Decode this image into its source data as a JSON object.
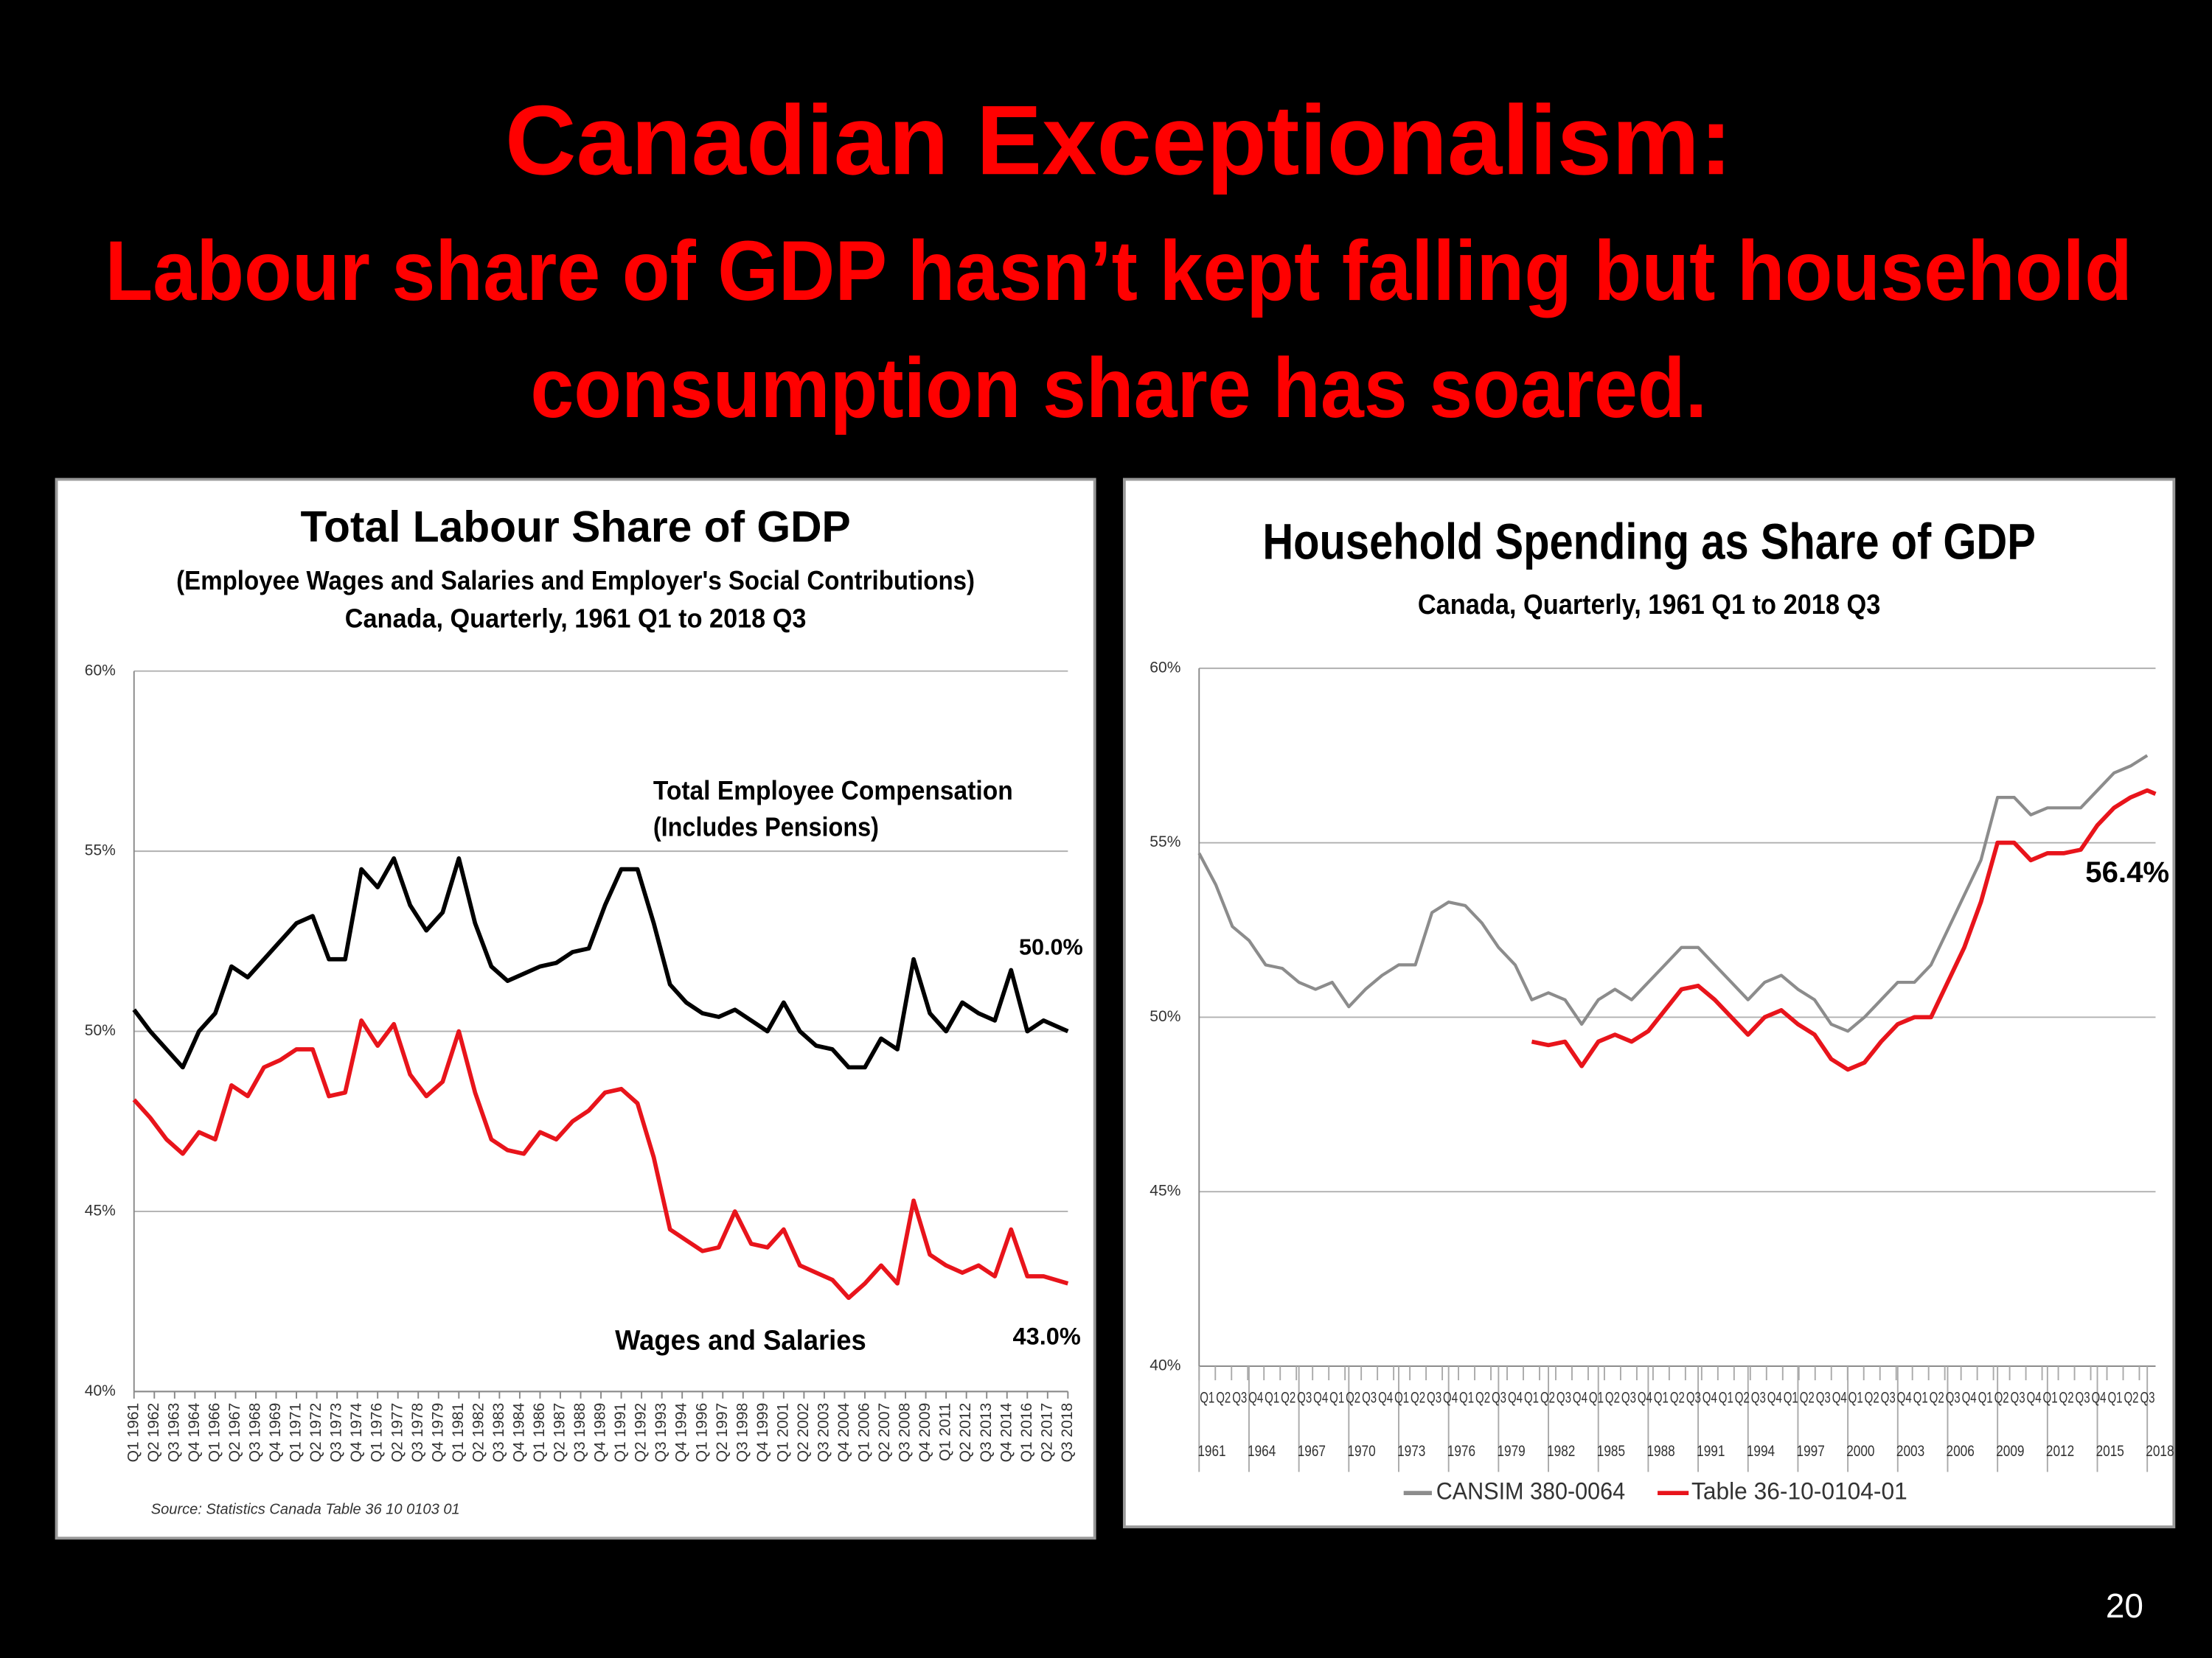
{
  "slide": {
    "title": "Canadian Exceptionalism:",
    "subtitle": [
      "Labour share of GDP hasn’t kept falling but household",
      "consumption share has soared."
    ],
    "page_number": "20"
  },
  "chart_data": [
    {
      "type": "line",
      "title": "Total Labour Share of GDP",
      "subtitle": [
        "(Employee Wages and Salaries and Employer's Social Contributions)",
        "Canada, Quarterly, 1961 Q1 to 2018 Q3"
      ],
      "note": "(Includes Pensions)",
      "source": "Source: Statistics Canada Table 36 10 0103 01",
      "x": [
        1961,
        1962,
        1963,
        1964,
        1965,
        1966,
        1967,
        1968,
        1969,
        1970,
        1971,
        1972,
        1973,
        1974,
        1975,
        1976,
        1977,
        1978,
        1979,
        1980,
        1981,
        1982,
        1983,
        1984,
        1985,
        1986,
        1987,
        1988,
        1989,
        1990,
        1991,
        1992,
        1993,
        1994,
        1995,
        1996,
        1997,
        1998,
        1999,
        2000,
        2001,
        2002,
        2003,
        2004,
        2005,
        2006,
        2007,
        2008,
        2009,
        2010,
        2011,
        2012,
        2013,
        2014,
        2015,
        2016,
        2017,
        2018.5
      ],
      "series": [
        {
          "name": "Total Employee Compensation",
          "color": "#000000",
          "end_label": "50.0%",
          "values": [
            50.6,
            50.0,
            49.5,
            49.0,
            50.0,
            50.5,
            51.8,
            51.5,
            52.0,
            52.5,
            53.0,
            53.2,
            52.0,
            52.0,
            54.5,
            54.0,
            54.8,
            53.5,
            52.8,
            53.3,
            54.8,
            53.0,
            51.8,
            51.4,
            51.6,
            51.8,
            51.9,
            52.2,
            52.3,
            53.5,
            54.5,
            54.5,
            53.0,
            51.3,
            50.8,
            50.5,
            50.4,
            50.6,
            50.3,
            50.0,
            50.8,
            50.0,
            49.6,
            49.5,
            49.0,
            49.0,
            49.8,
            49.5,
            52.0,
            50.5,
            50.0,
            50.8,
            50.5,
            50.3,
            51.7,
            50.0,
            50.3,
            50.0
          ]
        },
        {
          "name": "Wages and Salaries",
          "color": "#e8141b",
          "end_label": "43.0%",
          "values": [
            48.1,
            47.6,
            47.0,
            46.6,
            47.2,
            47.0,
            48.5,
            48.2,
            49.0,
            49.2,
            49.5,
            49.5,
            48.2,
            48.3,
            50.3,
            49.6,
            50.2,
            48.8,
            48.2,
            48.6,
            50.0,
            48.3,
            47.0,
            46.7,
            46.6,
            47.2,
            47.0,
            47.5,
            47.8,
            48.3,
            48.4,
            48.0,
            46.5,
            44.5,
            44.2,
            43.9,
            44.0,
            45.0,
            44.1,
            44.0,
            44.5,
            43.5,
            43.3,
            43.1,
            42.6,
            43.0,
            43.5,
            43.0,
            45.3,
            43.8,
            43.5,
            43.3,
            43.5,
            43.2,
            44.5,
            43.2,
            43.2,
            43.0
          ]
        }
      ],
      "xlim": [
        1961,
        2018.5
      ],
      "xticks": [
        {
          "value": 1961,
          "label": "Q1 1961"
        },
        {
          "value": 1962.25,
          "label": "Q2 1962"
        },
        {
          "value": 1963.5,
          "label": "Q3 1963"
        },
        {
          "value": 1964.75,
          "label": "Q4 1964"
        },
        {
          "value": 1966,
          "label": "Q1 1966"
        },
        {
          "value": 1967.25,
          "label": "Q2 1967"
        },
        {
          "value": 1968.5,
          "label": "Q3 1968"
        },
        {
          "value": 1969.75,
          "label": "Q4 1969"
        },
        {
          "value": 1971,
          "label": "Q1 1971"
        },
        {
          "value": 1972.25,
          "label": "Q2 1972"
        },
        {
          "value": 1973.5,
          "label": "Q3 1973"
        },
        {
          "value": 1974.75,
          "label": "Q4 1974"
        },
        {
          "value": 1976,
          "label": "Q1 1976"
        },
        {
          "value": 1977.25,
          "label": "Q2 1977"
        },
        {
          "value": 1978.5,
          "label": "Q3 1978"
        },
        {
          "value": 1979.75,
          "label": "Q4 1979"
        },
        {
          "value": 1981,
          "label": "Q1 1981"
        },
        {
          "value": 1982.25,
          "label": "Q2 1982"
        },
        {
          "value": 1983.5,
          "label": "Q3 1983"
        },
        {
          "value": 1984.75,
          "label": "Q4 1984"
        },
        {
          "value": 1986,
          "label": "Q1 1986"
        },
        {
          "value": 1987.25,
          "label": "Q2 1987"
        },
        {
          "value": 1988.5,
          "label": "Q3 1988"
        },
        {
          "value": 1989.75,
          "label": "Q4 1989"
        },
        {
          "value": 1991,
          "label": "Q1 1991"
        },
        {
          "value": 1992.25,
          "label": "Q2 1992"
        },
        {
          "value": 1993.5,
          "label": "Q3 1993"
        },
        {
          "value": 1994.75,
          "label": "Q4 1994"
        },
        {
          "value": 1996,
          "label": "Q1 1996"
        },
        {
          "value": 1997.25,
          "label": "Q2 1997"
        },
        {
          "value": 1998.5,
          "label": "Q3 1998"
        },
        {
          "value": 1999.75,
          "label": "Q4 1999"
        },
        {
          "value": 2001,
          "label": "Q1 2001"
        },
        {
          "value": 2002.25,
          "label": "Q2 2002"
        },
        {
          "value": 2003.5,
          "label": "Q3 2003"
        },
        {
          "value": 2004.75,
          "label": "Q4 2004"
        },
        {
          "value": 2006,
          "label": "Q1 2006"
        },
        {
          "value": 2007.25,
          "label": "Q2 2007"
        },
        {
          "value": 2008.5,
          "label": "Q3 2008"
        },
        {
          "value": 2009.75,
          "label": "Q4 2009"
        },
        {
          "value": 2011,
          "label": "Q1 2011"
        },
        {
          "value": 2012.25,
          "label": "Q2 2012"
        },
        {
          "value": 2013.5,
          "label": "Q3 2013"
        },
        {
          "value": 2014.75,
          "label": "Q4 2014"
        },
        {
          "value": 2016,
          "label": "Q1 2016"
        },
        {
          "value": 2017.25,
          "label": "Q2 2017"
        },
        {
          "value": 2018.5,
          "label": "Q3 2018"
        }
      ],
      "ylim": [
        40,
        60
      ],
      "yticks": [
        {
          "value": 40,
          "label": "40%"
        },
        {
          "value": 45,
          "label": "45%"
        },
        {
          "value": 50,
          "label": "50%"
        },
        {
          "value": 55,
          "label": "55%"
        },
        {
          "value": 60,
          "label": "60%"
        }
      ],
      "grid": true
    },
    {
      "type": "line",
      "title": "Household Spending as Share of GDP",
      "subtitle": [
        "Canada, Quarterly, 1961 Q1 to 2018 Q3"
      ],
      "quarter_labels": [
        "Q1",
        "Q2",
        "Q3",
        "Q4"
      ],
      "x": [
        1961,
        1962,
        1963,
        1964,
        1965,
        1966,
        1967,
        1968,
        1969,
        1970,
        1971,
        1972,
        1973,
        1974,
        1975,
        1976,
        1977,
        1978,
        1979,
        1980,
        1981,
        1982,
        1983,
        1984,
        1985,
        1986,
        1987,
        1988,
        1989,
        1990,
        1991,
        1992,
        1993,
        1994,
        1995,
        1996,
        1997,
        1998,
        1999,
        2000,
        2001,
        2002,
        2003,
        2004,
        2005,
        2006,
        2007,
        2008,
        2009,
        2010,
        2011,
        2012,
        2013,
        2014,
        2015,
        2016,
        2017,
        2018,
        2018.5
      ],
      "series": [
        {
          "name": "CANSIM 380-0064",
          "color": "#8c8c8c",
          "values": [
            54.7,
            53.8,
            52.6,
            52.2,
            51.5,
            51.4,
            51.0,
            50.8,
            51.0,
            50.3,
            50.8,
            51.2,
            51.5,
            51.5,
            53.0,
            53.3,
            53.2,
            52.7,
            52.0,
            51.5,
            50.5,
            50.7,
            50.5,
            49.8,
            50.5,
            50.8,
            50.5,
            51.0,
            51.5,
            52.0,
            52.0,
            51.5,
            51.0,
            50.5,
            51.0,
            51.2,
            50.8,
            50.5,
            49.8,
            49.6,
            50.0,
            50.5,
            51.0,
            51.0,
            51.5,
            52.5,
            53.5,
            54.5,
            56.3,
            56.3,
            55.8,
            56.0,
            56.0,
            56.0,
            56.5,
            57.0,
            57.2,
            57.5,
            null
          ]
        },
        {
          "name": "Table 36-10-0104-01",
          "color": "#e8141b",
          "end_label": "56.4%",
          "values": [
            null,
            null,
            null,
            null,
            null,
            null,
            null,
            null,
            null,
            null,
            null,
            null,
            null,
            null,
            null,
            null,
            null,
            null,
            null,
            null,
            49.3,
            49.2,
            49.3,
            48.6,
            49.3,
            49.5,
            49.3,
            49.6,
            50.2,
            50.8,
            50.9,
            50.5,
            50.0,
            49.5,
            50.0,
            50.2,
            49.8,
            49.5,
            48.8,
            48.5,
            48.7,
            49.3,
            49.8,
            50.0,
            50.0,
            51.0,
            52.0,
            53.3,
            55.0,
            55.0,
            54.5,
            54.7,
            54.7,
            54.8,
            55.5,
            56.0,
            56.3,
            56.5,
            56.4
          ]
        }
      ],
      "xlim": [
        1961,
        2018.5
      ],
      "xticks": [
        1961,
        1964,
        1967,
        1970,
        1973,
        1976,
        1979,
        1982,
        1985,
        1988,
        1991,
        1994,
        1997,
        2000,
        2003,
        2006,
        2009,
        2012,
        2015,
        2018
      ],
      "ylim": [
        40,
        60
      ],
      "yticks": [
        {
          "value": 40,
          "label": "40%"
        },
        {
          "value": 45,
          "label": "45%"
        },
        {
          "value": 50,
          "label": "50%"
        },
        {
          "value": 55,
          "label": "55%"
        },
        {
          "value": 60,
          "label": "60%"
        }
      ],
      "grid": true,
      "legend": "bottom"
    }
  ]
}
